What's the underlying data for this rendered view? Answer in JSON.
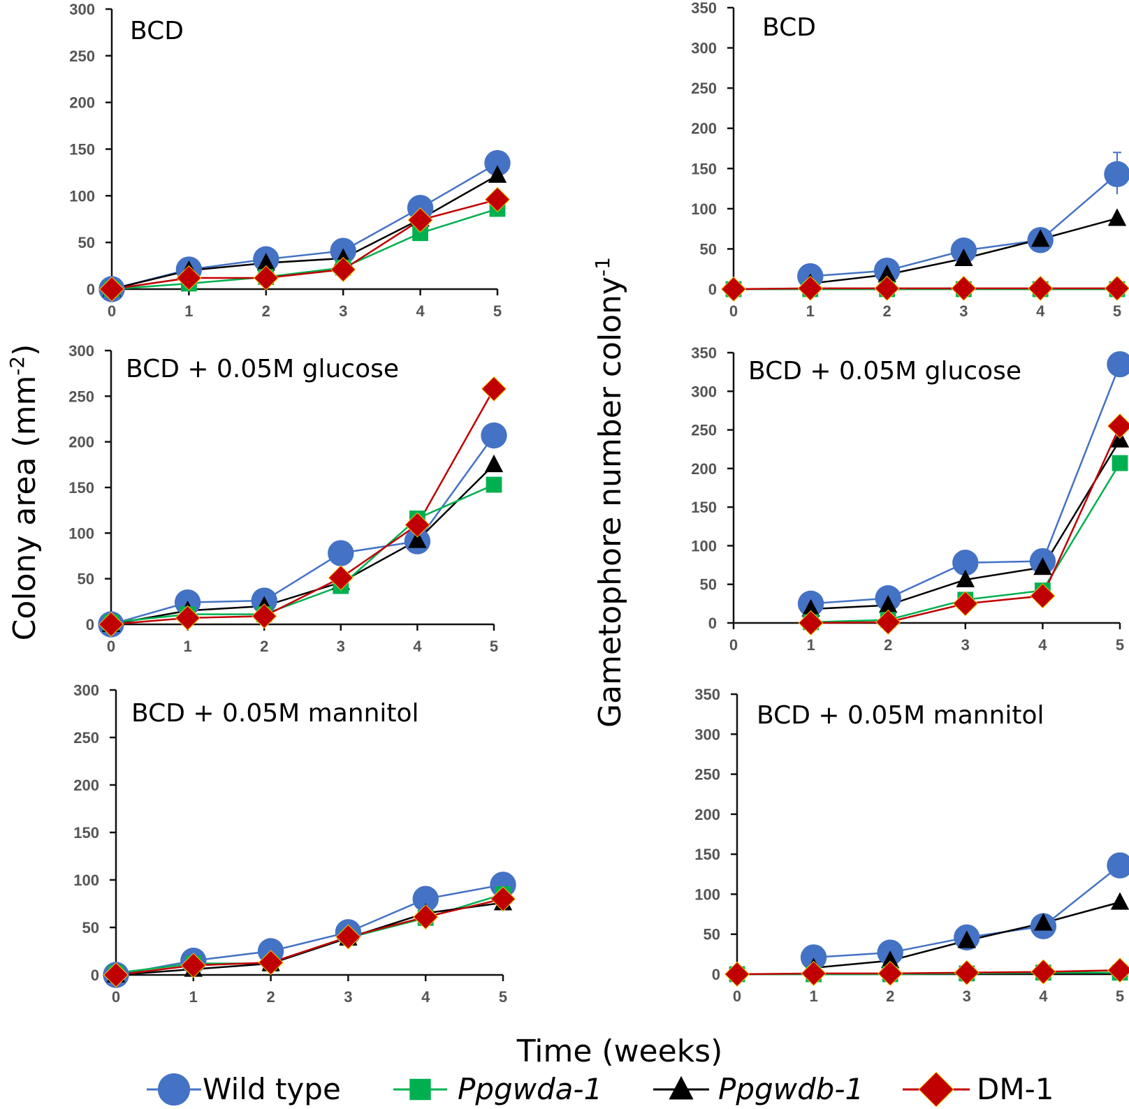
{
  "chart_data": {
    "y_label_left": "Colony area (mm",
    "y_label_left_sup": "-2",
    "y_label_left_tail": ")",
    "y_label_right": "Gametophore number colony",
    "y_label_right_sup": "-1",
    "x_label": "Time (weeks)",
    "legend": [
      {
        "key": "wt",
        "name": "Wild type",
        "italic": false,
        "color": "#4472C4",
        "marker": "circle"
      },
      {
        "key": "gwda",
        "name": "Ppgwda-1",
        "italic": true,
        "color": "#00B050",
        "marker": "square"
      },
      {
        "key": "gwdb",
        "name": "Ppgwdb-1",
        "italic": true,
        "color": "#000000",
        "marker": "triangle"
      },
      {
        "key": "dm",
        "name": "DM-1",
        "italic": false,
        "color": "#C00000",
        "marker": "diamond"
      }
    ],
    "panels": [
      {
        "id": "area-bcd",
        "type": "line",
        "title": "BCD",
        "xticks": [
          "0",
          "1",
          "2",
          "3",
          "4",
          "5"
        ],
        "yticks": [
          "0",
          "50",
          "100",
          "150",
          "200",
          "250",
          "300"
        ],
        "ylim": [
          0,
          300
        ],
        "series": [
          {
            "key": "wt",
            "x": [
              0,
              1,
              2,
              3,
              4,
              5
            ],
            "values": [
              0,
              21,
              32,
              41,
              87,
              135
            ]
          },
          {
            "key": "gwdb",
            "x": [
              0,
              1,
              2,
              3,
              4,
              5
            ],
            "values": [
              0,
              20,
              28,
              33,
              75,
              122
            ]
          },
          {
            "key": "gwda",
            "x": [
              0,
              1,
              2,
              3,
              4,
              5
            ],
            "values": [
              0,
              6,
              13,
              23,
              60,
              86
            ]
          },
          {
            "key": "dm",
            "x": [
              0,
              1,
              2,
              3,
              4,
              5
            ],
            "values": [
              0,
              12,
              12,
              21,
              74,
              96
            ]
          }
        ]
      },
      {
        "id": "game-bcd",
        "type": "line",
        "title": "BCD",
        "xticks": [
          "0",
          "1",
          "2",
          "3",
          "4",
          "5"
        ],
        "yticks": [
          "0",
          "50",
          "100",
          "150",
          "200",
          "250",
          "300",
          "350"
        ],
        "ylim": [
          0,
          350
        ],
        "series": [
          {
            "key": "wt",
            "x": [
              1,
              2,
              3,
              4,
              5
            ],
            "values": [
              16,
              23,
              48,
              61,
              143
            ]
          },
          {
            "key": "gwdb",
            "x": [
              1,
              2,
              3,
              4,
              5
            ],
            "values": [
              7,
              18,
              38,
              62,
              88
            ]
          },
          {
            "key": "gwda",
            "x": [
              0,
              1,
              2,
              3,
              4,
              5
            ],
            "values": [
              0,
              0,
              0,
              0,
              0,
              0
            ]
          },
          {
            "key": "dm",
            "x": [
              0,
              1,
              2,
              3,
              4,
              5
            ],
            "values": [
              0,
              1,
              1,
              1,
              1,
              1
            ]
          }
        ]
      },
      {
        "id": "area-glucose",
        "type": "line",
        "title": "BCD + 0.05M glucose",
        "xticks": [
          "0",
          "1",
          "2",
          "3",
          "4",
          "5"
        ],
        "yticks": [
          "0",
          "50",
          "100",
          "150",
          "200",
          "250",
          "300"
        ],
        "ylim": [
          0,
          300
        ],
        "series": [
          {
            "key": "wt",
            "x": [
              0,
              1,
              2,
              3,
              4,
              5
            ],
            "values": [
              0,
              24,
              26,
              78,
              91,
              207
            ]
          },
          {
            "key": "gwdb",
            "x": [
              0,
              1,
              2,
              3,
              4,
              5
            ],
            "values": [
              0,
              15,
              20,
              46,
              92,
              175
            ]
          },
          {
            "key": "gwda",
            "x": [
              0,
              1,
              2,
              3,
              4,
              5
            ],
            "values": [
              2,
              11,
              11,
              42,
              116,
              153
            ]
          },
          {
            "key": "dm",
            "x": [
              0,
              1,
              2,
              3,
              4,
              5
            ],
            "values": [
              0,
              7,
              9,
              51,
              109,
              258
            ]
          }
        ]
      },
      {
        "id": "game-glucose",
        "type": "line",
        "title": "BCD + 0.05M glucose",
        "xticks": [
          "0",
          "1",
          "2",
          "3",
          "4",
          "5"
        ],
        "yticks": [
          "0",
          "50",
          "100",
          "150",
          "200",
          "250",
          "300",
          "350"
        ],
        "ylim": [
          0,
          350
        ],
        "series": [
          {
            "key": "wt",
            "x": [
              1,
              2,
              3,
              4,
              5
            ],
            "values": [
              25,
              32,
              78,
              80,
              335
            ]
          },
          {
            "key": "gwdb",
            "x": [
              1,
              2,
              3,
              4,
              5
            ],
            "values": [
              18,
              23,
              56,
              72,
              237
            ]
          },
          {
            "key": "gwda",
            "x": [
              1,
              2,
              3,
              4,
              5
            ],
            "values": [
              1,
              4,
              30,
              42,
              207
            ]
          },
          {
            "key": "dm",
            "x": [
              1,
              2,
              3,
              4,
              5
            ],
            "values": [
              0,
              1,
              25,
              35,
              255
            ]
          }
        ]
      },
      {
        "id": "area-mannitol",
        "type": "line",
        "title": "BCD + 0.05M mannitol",
        "xticks": [
          "0",
          "1",
          "2",
          "3",
          "4",
          "5"
        ],
        "yticks": [
          "0",
          "50",
          "100",
          "150",
          "200",
          "250",
          "300"
        ],
        "ylim": [
          0,
          300
        ],
        "series": [
          {
            "key": "wt",
            "x": [
              0,
              1,
              2,
              3,
              4,
              5
            ],
            "values": [
              0,
              15,
              25,
              45,
              80,
              95
            ]
          },
          {
            "key": "gwda",
            "x": [
              0,
              1,
              2,
              3,
              4,
              5
            ],
            "values": [
              2,
              12,
              12,
              39,
              60,
              85
            ]
          },
          {
            "key": "gwdb",
            "x": [
              0,
              1,
              2,
              3,
              4,
              5
            ],
            "values": [
              0,
              6,
              12,
              39,
              65,
              76
            ]
          },
          {
            "key": "dm",
            "x": [
              0,
              1,
              2,
              3,
              4,
              5
            ],
            "values": [
              0,
              10,
              13,
              40,
              61,
              80
            ]
          }
        ]
      },
      {
        "id": "game-mannitol",
        "type": "line",
        "title": "BCD + 0.05M mannitol",
        "xticks": [
          "0",
          "1",
          "2",
          "3",
          "4",
          "5"
        ],
        "yticks": [
          "0",
          "50",
          "100",
          "150",
          "200",
          "250",
          "300",
          "350"
        ],
        "ylim": [
          0,
          350
        ],
        "series": [
          {
            "key": "wt",
            "x": [
              1,
              2,
              3,
              4,
              5
            ],
            "values": [
              21,
              27,
              46,
              60,
              136
            ]
          },
          {
            "key": "gwdb",
            "x": [
              1,
              2,
              3,
              4,
              5
            ],
            "values": [
              8,
              17,
              42,
              64,
              90
            ]
          },
          {
            "key": "gwda",
            "x": [
              0,
              1,
              2,
              3,
              4,
              5
            ],
            "values": [
              0,
              0,
              0,
              1,
              2,
              2
            ]
          },
          {
            "key": "dm",
            "x": [
              0,
              1,
              2,
              3,
              4,
              5
            ],
            "values": [
              0,
              1,
              1,
              2,
              3,
              5
            ]
          }
        ]
      }
    ]
  }
}
